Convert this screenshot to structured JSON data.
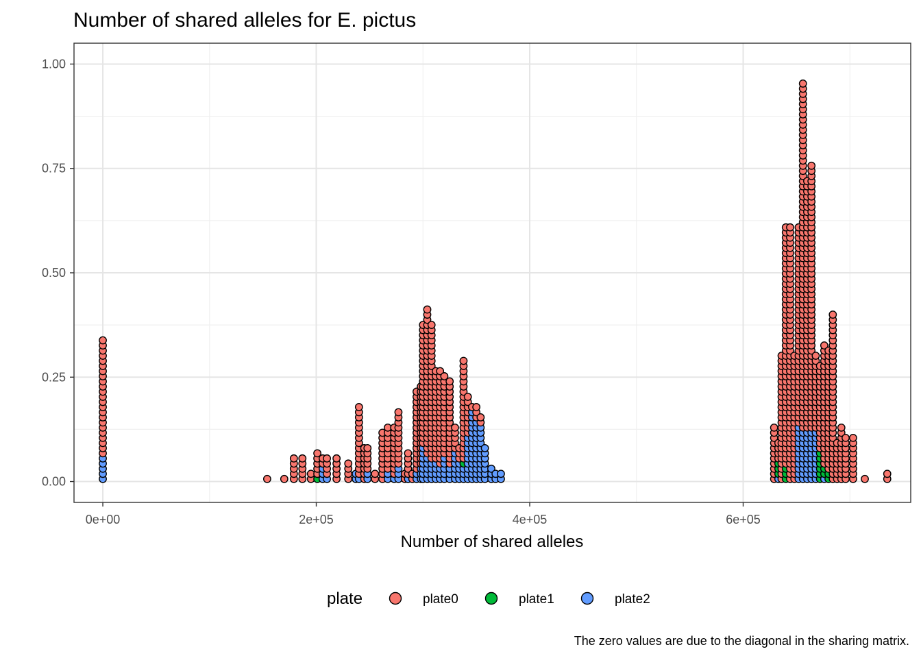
{
  "chart_data": {
    "type": "scatter",
    "subtype": "dotplot",
    "title": "Number of shared alleles for E. pictus",
    "xlabel": "Number of shared alleles",
    "ylabel": "",
    "caption": "The zero values are due to the diagonal in the sharing matrix.",
    "xlim": [
      -27000,
      757000
    ],
    "ylim": [
      -0.05,
      1.05
    ],
    "x_ticks": [
      0,
      200000,
      400000,
      600000
    ],
    "x_tick_labels": [
      "0e+00",
      "2e+05",
      "4e+05",
      "6e+05"
    ],
    "y_ticks": [
      0,
      0.25,
      0.5,
      0.75,
      1.0
    ],
    "y_tick_labels": [
      "0.00",
      "0.25",
      "0.50",
      "0.75",
      "1.00"
    ],
    "grid": true,
    "legend_position": "bottom",
    "legend": {
      "title": "plate",
      "entries": [
        {
          "label": "plate0",
          "color": "#F8766D"
        },
        {
          "label": "plate1",
          "color": "#00BA38"
        },
        {
          "label": "plate2",
          "color": "#619CFF"
        }
      ]
    },
    "dot_step_y": 0.0123,
    "columns": [
      {
        "x": 0,
        "stack": [
          [
            5,
            2
          ],
          [
            23,
            0
          ]
        ]
      },
      {
        "x": 154000,
        "stack": [
          [
            1,
            0
          ]
        ]
      },
      {
        "x": 170000,
        "stack": [
          [
            1,
            0
          ]
        ]
      },
      {
        "x": 179000,
        "stack": [
          [
            5,
            0
          ]
        ]
      },
      {
        "x": 187000,
        "stack": [
          [
            5,
            0
          ]
        ]
      },
      {
        "x": 195000,
        "stack": [
          [
            2,
            0
          ]
        ]
      },
      {
        "x": 201000,
        "stack": [
          [
            1,
            1
          ],
          [
            2,
            0
          ],
          [
            3,
            0
          ]
        ]
      },
      {
        "x": 206000,
        "stack": [
          [
            3,
            2
          ],
          [
            2,
            0
          ]
        ]
      },
      {
        "x": 210000,
        "stack": [
          [
            1,
            2
          ],
          [
            4,
            0
          ]
        ]
      },
      {
        "x": 219000,
        "stack": [
          [
            5,
            0
          ]
        ]
      },
      {
        "x": 230000,
        "stack": [
          [
            1,
            0
          ],
          [
            3,
            0
          ]
        ]
      },
      {
        "x": 237000,
        "stack": [
          [
            2,
            2
          ]
        ]
      },
      {
        "x": 240000,
        "stack": [
          [
            1,
            2
          ],
          [
            14,
            0
          ]
        ]
      },
      {
        "x": 245000,
        "stack": [
          [
            7,
            0
          ]
        ]
      },
      {
        "x": 248000,
        "stack": [
          [
            2,
            2
          ],
          [
            5,
            0
          ]
        ]
      },
      {
        "x": 255000,
        "stack": [
          [
            2,
            0
          ]
        ]
      },
      {
        "x": 262000,
        "stack": [
          [
            2,
            0
          ],
          [
            8,
            0
          ]
        ]
      },
      {
        "x": 267000,
        "stack": [
          [
            2,
            2
          ],
          [
            9,
            0
          ]
        ]
      },
      {
        "x": 273000,
        "stack": [
          [
            1,
            2
          ],
          [
            10,
            0
          ]
        ]
      },
      {
        "x": 277000,
        "stack": [
          [
            3,
            2
          ],
          [
            11,
            0
          ]
        ]
      },
      {
        "x": 283000,
        "stack": [
          [
            2,
            0
          ]
        ]
      },
      {
        "x": 286000,
        "stack": [
          [
            1,
            2
          ],
          [
            5,
            0
          ]
        ]
      },
      {
        "x": 290000,
        "stack": [
          [
            2,
            0
          ]
        ]
      },
      {
        "x": 294000,
        "stack": [
          [
            2,
            2
          ],
          [
            16,
            0
          ]
        ]
      },
      {
        "x": 298000,
        "stack": [
          [
            3,
            2
          ],
          [
            16,
            0
          ]
        ]
      },
      {
        "x": 300000,
        "stack": [
          [
            7,
            2
          ],
          [
            24,
            0
          ]
        ]
      },
      {
        "x": 304000,
        "stack": [
          [
            5,
            2
          ],
          [
            29,
            0
          ]
        ]
      },
      {
        "x": 308000,
        "stack": [
          [
            4,
            2
          ],
          [
            27,
            0
          ]
        ]
      },
      {
        "x": 312000,
        "stack": [
          [
            4,
            2
          ],
          [
            18,
            0
          ]
        ]
      },
      {
        "x": 316000,
        "stack": [
          [
            3,
            2
          ],
          [
            19,
            0
          ]
        ]
      },
      {
        "x": 320000,
        "stack": [
          [
            5,
            2
          ],
          [
            16,
            0
          ]
        ]
      },
      {
        "x": 325000,
        "stack": [
          [
            3,
            2
          ],
          [
            17,
            0
          ]
        ]
      },
      {
        "x": 330000,
        "stack": [
          [
            6,
            2
          ],
          [
            5,
            0
          ]
        ]
      },
      {
        "x": 334000,
        "stack": [
          [
            4,
            2
          ],
          [
            3,
            0
          ]
        ]
      },
      {
        "x": 338000,
        "stack": [
          [
            3,
            2
          ],
          [
            1,
            1
          ],
          [
            20,
            0
          ]
        ]
      },
      {
        "x": 342000,
        "stack": [
          [
            9,
            2
          ],
          [
            8,
            0
          ]
        ]
      },
      {
        "x": 346000,
        "stack": [
          [
            14,
            2
          ],
          [
            1,
            0
          ]
        ]
      },
      {
        "x": 350000,
        "stack": [
          [
            12,
            2
          ],
          [
            3,
            0
          ]
        ]
      },
      {
        "x": 354000,
        "stack": [
          [
            11,
            2
          ],
          [
            2,
            0
          ]
        ]
      },
      {
        "x": 358000,
        "stack": [
          [
            7,
            2
          ]
        ]
      },
      {
        "x": 364000,
        "stack": [
          [
            3,
            2
          ]
        ]
      },
      {
        "x": 368000,
        "stack": [
          [
            2,
            2
          ]
        ]
      },
      {
        "x": 373000,
        "stack": [
          [
            2,
            2
          ]
        ]
      },
      {
        "x": 629000,
        "stack": [
          [
            11,
            0
          ]
        ]
      },
      {
        "x": 633000,
        "stack": [
          [
            1,
            2
          ],
          [
            3,
            1
          ],
          [
            4,
            0
          ]
        ]
      },
      {
        "x": 636000,
        "stack": [
          [
            25,
            0
          ]
        ]
      },
      {
        "x": 640000,
        "stack": [
          [
            3,
            1
          ],
          [
            47,
            0
          ]
        ]
      },
      {
        "x": 644000,
        "stack": [
          [
            50,
            0
          ]
        ]
      },
      {
        "x": 648000,
        "stack": [
          [
            25,
            0
          ]
        ]
      },
      {
        "x": 652000,
        "stack": [
          [
            11,
            2
          ],
          [
            39,
            0
          ]
        ]
      },
      {
        "x": 656000,
        "stack": [
          [
            10,
            2
          ],
          [
            68,
            0
          ]
        ]
      },
      {
        "x": 660000,
        "stack": [
          [
            10,
            2
          ],
          [
            49,
            0
          ]
        ]
      },
      {
        "x": 664000,
        "stack": [
          [
            10,
            2
          ],
          [
            52,
            0
          ]
        ]
      },
      {
        "x": 668000,
        "stack": [
          [
            10,
            2
          ],
          [
            15,
            0
          ]
        ]
      },
      {
        "x": 672000,
        "stack": [
          [
            6,
            1
          ],
          [
            17,
            0
          ]
        ]
      },
      {
        "x": 676000,
        "stack": [
          [
            1,
            2
          ],
          [
            2,
            1
          ],
          [
            24,
            0
          ]
        ]
      },
      {
        "x": 680000,
        "stack": [
          [
            2,
            1
          ],
          [
            24,
            0
          ]
        ]
      },
      {
        "x": 684000,
        "stack": [
          [
            33,
            0
          ]
        ]
      },
      {
        "x": 688000,
        "stack": [
          [
            8,
            0
          ]
        ]
      },
      {
        "x": 692000,
        "stack": [
          [
            11,
            0
          ]
        ]
      },
      {
        "x": 696000,
        "stack": [
          [
            9,
            0
          ]
        ]
      },
      {
        "x": 703000,
        "stack": [
          [
            9,
            0
          ]
        ]
      },
      {
        "x": 714000,
        "stack": [
          [
            1,
            0
          ]
        ]
      },
      {
        "x": 735000,
        "stack": [
          [
            2,
            0
          ]
        ]
      }
    ]
  }
}
